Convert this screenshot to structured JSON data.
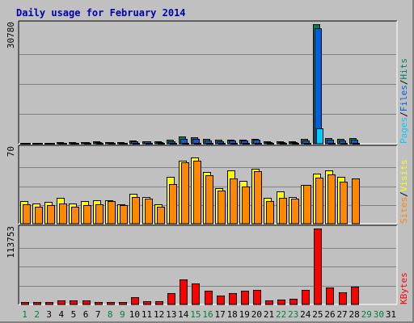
{
  "chart_data": {
    "type": "bar",
    "title": "Daily usage for February 2014",
    "colors": {
      "background": "#c0c0c0",
      "pages": "#00ccff",
      "files": "#0060e0",
      "hits": "#008060",
      "visits": "#ffff00",
      "sites": "#ff8800",
      "kbytes": "#ff0000",
      "weekday_label": "#000000",
      "weekend_label": "#008040"
    },
    "categories": [
      "1",
      "2",
      "3",
      "4",
      "5",
      "6",
      "7",
      "8",
      "9",
      "10",
      "11",
      "12",
      "13",
      "14",
      "15",
      "16",
      "17",
      "18",
      "19",
      "20",
      "21",
      "22",
      "23",
      "24",
      "25",
      "26",
      "27",
      "28",
      "29",
      "30",
      "31"
    ],
    "weekend_days": [
      "1",
      "2",
      "8",
      "9",
      "15",
      "16",
      "22",
      "23",
      "29",
      "30"
    ],
    "panels": [
      {
        "ymax_label": "30780",
        "ylim": [
          0,
          30780
        ],
        "legend": [
          "Pages",
          "Files",
          "Hits"
        ],
        "series": [
          {
            "name": "Hits",
            "values": [
              200,
              200,
              250,
              350,
              450,
              500,
              550,
              500,
              400,
              750,
              700,
              650,
              950,
              1900,
              1750,
              1150,
              950,
              1050,
              1050,
              1350,
              550,
              550,
              700,
              1200,
              30780,
              1400,
              1250,
              1450,
              null,
              null,
              null
            ]
          },
          {
            "name": "Files",
            "values": [
              120,
              120,
              150,
              220,
              300,
              340,
              380,
              340,
              270,
              550,
              520,
              480,
              700,
              1300,
              1200,
              800,
              650,
              730,
              730,
              950,
              380,
              380,
              480,
              800,
              29800,
              1000,
              900,
              1050,
              null,
              null,
              null
            ]
          },
          {
            "name": "Pages",
            "values": [
              20,
              20,
              25,
              40,
              60,
              70,
              80,
              70,
              50,
              110,
              100,
              90,
              140,
              260,
              240,
              160,
              130,
              150,
              150,
              190,
              70,
              70,
              90,
              160,
              4000,
              200,
              180,
              210,
              null,
              null,
              null
            ]
          }
        ]
      },
      {
        "ymax_label": "70",
        "ylim": [
          0,
          70
        ],
        "legend": [
          "Sites",
          "Visits"
        ],
        "series": [
          {
            "name": "Visits",
            "values": [
              21,
              19,
              20,
              24,
              19,
              21,
              22,
              22,
              18,
              28,
              25,
              18,
              44,
              59,
              62,
              48,
              33,
              50,
              40,
              51,
              24,
              30,
              25,
              36,
              47,
              50,
              44,
              null,
              null,
              null,
              null
            ]
          },
          {
            "name": "Sites",
            "values": [
              18,
              16,
              17,
              19,
              16,
              17,
              18,
              21,
              17,
              25,
              23,
              16,
              37,
              57,
              59,
              45,
              31,
              42,
              35,
              49,
              21,
              24,
              23,
              36,
              43,
              46,
              39,
              42,
              null,
              null,
              null
            ]
          }
        ]
      },
      {
        "ymax_label": "113753",
        "ylim": [
          0,
          113753
        ],
        "legend": [
          "KBytes"
        ],
        "series": [
          {
            "name": "KBytes",
            "values": [
              3500,
              4000,
              3500,
              5500,
              6000,
              5500,
              3500,
              4000,
              4000,
              10500,
              5000,
              4500,
              17500,
              37000,
              32000,
              21000,
              13500,
              17500,
              20000,
              22000,
              6000,
              7500,
              8500,
              21500,
              113753,
              25000,
              18500,
              26500,
              null,
              null,
              null
            ]
          }
        ]
      }
    ]
  }
}
